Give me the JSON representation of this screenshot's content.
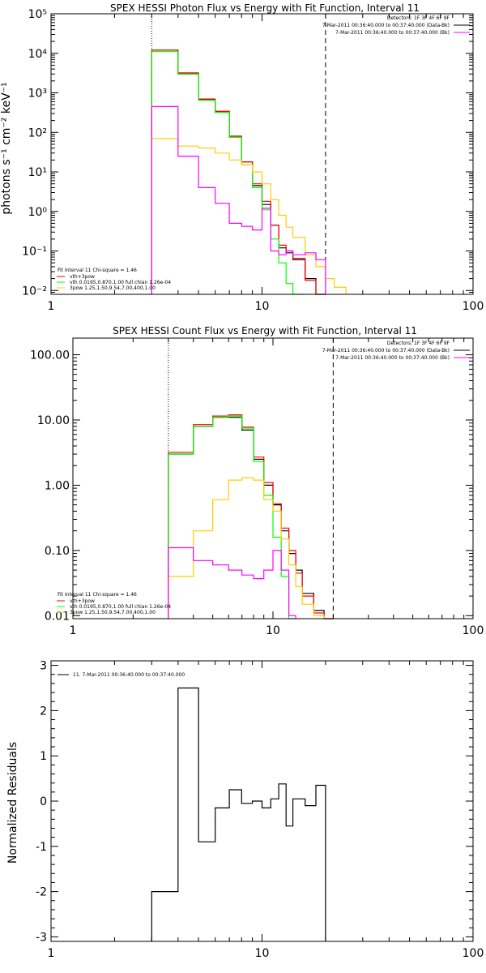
{
  "chart_data": [
    {
      "type": "line",
      "title": "SPEX HESSI Photon Flux vs Energy with Fit Function, Interval 11",
      "ylabel": "photons s⁻¹ cm⁻² keV⁻¹",
      "x_scale": "log",
      "y_scale": "log",
      "xlim": [
        1,
        100
      ],
      "ylim": [
        0.008,
        100000
      ],
      "x_ticks": [
        1,
        10,
        100
      ],
      "x_tick_labels": [
        "1",
        "10",
        "100"
      ],
      "y_ticks": [
        0.01,
        0.1,
        1,
        10,
        100,
        1000,
        10000,
        100000
      ],
      "y_tick_labels": [
        "10⁻²",
        "10⁻¹",
        "10⁰",
        "10¹",
        "10²",
        "10³",
        "10⁴",
        "10⁵"
      ],
      "vlines": [
        {
          "x": 3,
          "style": "dotted"
        },
        {
          "x": 20,
          "style": "dashed"
        }
      ],
      "info_lines": [
        "Detectors: 1F 3F 4F 6F 9F",
        "7-Mar-2011 00:36:40.000 to 00:37:40.000 (Data-Bk)",
        "7-Mar-2011 00:36:40.000 to 00:37:40.000 (Bk)"
      ],
      "info_colors": [
        "#000000",
        "#000000",
        "#ff00ff"
      ],
      "legend": [
        {
          "text": "Fit Interval 11    Chi-square = 1.46",
          "color": null
        },
        {
          "text": "vth+3pow",
          "color": "#ff0000"
        },
        {
          "text": "vth 0.0195,0.870,1.00  full chian 1.26e-04",
          "color": "#00ff00"
        },
        {
          "text": "3pow 1.25,1.50,9.54,7.00,400,1.00",
          "color": "#ffcc00"
        }
      ],
      "bin_edges": [
        3,
        4,
        5,
        6,
        7,
        8,
        9,
        10,
        11,
        12,
        13,
        14,
        16,
        18,
        20,
        22,
        25
      ],
      "series": [
        {
          "color": "#000000",
          "values": [
            12000,
            3000,
            680,
            340,
            80,
            18,
            4.5,
            1.5,
            0.45,
            0.12,
            0.09,
            0.06,
            0.02,
            0.008,
            null,
            null
          ]
        },
        {
          "color": "#ff0000",
          "values": [
            12000,
            3200,
            700,
            340,
            80,
            18,
            5,
            1.8,
            0.45,
            0.14,
            0.1,
            0.065,
            0.018,
            0.008,
            null,
            null
          ]
        },
        {
          "color": "#00ff00",
          "values": [
            11000,
            3000,
            650,
            320,
            75,
            15,
            4,
            1.1,
            0.2,
            0.05,
            0.015,
            0.008,
            null,
            null,
            null,
            null
          ]
        },
        {
          "color": "#ffcc00",
          "values": [
            70,
            45,
            40,
            30,
            20,
            15,
            10,
            5,
            2,
            0.8,
            0.4,
            0.22,
            0.08,
            0.04,
            0.02,
            0.012
          ]
        },
        {
          "color": "#ff00ff",
          "values": [
            450,
            25,
            4,
            1.6,
            0.5,
            0.42,
            0.34,
            1.2,
            0.1,
            0.08,
            0.1,
            0.08,
            0.09,
            0.06,
            null,
            null
          ]
        }
      ]
    },
    {
      "type": "line",
      "title": "SPEX HESSI Count Flux vs Energy with Fit Function, Interval 11",
      "x_scale": "log",
      "y_scale": "log",
      "xlim": [
        1,
        100
      ],
      "ylim": [
        0.009,
        180
      ],
      "x_ticks": [
        1,
        10,
        100
      ],
      "x_tick_labels": [
        "1",
        "10",
        "100"
      ],
      "y_ticks": [
        0.01,
        0.1,
        1,
        10,
        100
      ],
      "y_tick_labels": [
        "0.01",
        "0.10",
        "1.00",
        "10.00",
        "100.00"
      ],
      "vlines": [
        {
          "x": 3,
          "style": "dotted"
        },
        {
          "x": 20,
          "style": "dashed"
        }
      ],
      "info_lines": [
        "Detectors: 1F 3F 4F 6F 9F",
        "7-Mar-2011 00:36:40.000 to 00:37:40.000 (Data-Bk)",
        "7-Mar-2011 00:36:40.000 to 00:37:40.000 (Bk)"
      ],
      "info_colors": [
        "#000000",
        "#000000",
        "#ff00ff"
      ],
      "legend": [
        {
          "text": "Fit Interval 11    Chi-square = 1.46",
          "color": null
        },
        {
          "text": "vth+3pow",
          "color": "#ff0000"
        },
        {
          "text": "vth 0.0195,0.870,1.00  full chian 1.26e-04",
          "color": "#00ff00"
        },
        {
          "text": "3pow 1.25,1.50,9.54,7.00,400,1.00",
          "color": "#ffcc00"
        }
      ],
      "bin_edges": [
        3,
        4,
        5,
        6,
        7,
        8,
        9,
        10,
        11,
        12,
        13,
        14,
        16,
        18,
        20
      ],
      "series": [
        {
          "color": "#000000",
          "values": [
            3.0,
            8.0,
            11.0,
            11.0,
            7.0,
            2.5,
            1.0,
            0.5,
            0.2,
            0.09,
            0.05,
            0.022,
            0.012,
            0.009
          ]
        },
        {
          "color": "#ff0000",
          "values": [
            3.2,
            8.5,
            11.5,
            12.0,
            7.8,
            2.7,
            1.1,
            0.52,
            0.22,
            0.1,
            0.045,
            0.02,
            0.011,
            0.009
          ]
        },
        {
          "color": "#00ff00",
          "values": [
            3.0,
            8.0,
            11.0,
            11.5,
            7.5,
            2.3,
            0.7,
            0.16,
            0.04,
            0.009,
            null,
            null,
            null,
            null
          ]
        },
        {
          "color": "#ffcc00",
          "values": [
            0.04,
            0.2,
            0.6,
            1.2,
            1.3,
            1.2,
            0.6,
            0.4,
            0.15,
            0.06,
            0.028,
            0.015,
            0.01,
            null
          ]
        },
        {
          "color": "#ff00ff",
          "values": [
            0.11,
            0.07,
            0.06,
            0.05,
            0.042,
            0.037,
            0.05,
            0.1,
            0.05,
            0.01,
            null,
            null,
            null,
            null
          ]
        }
      ]
    },
    {
      "type": "line",
      "ylabel": "Normalized Residuals",
      "x_scale": "log",
      "y_scale": "linear",
      "xlim": [
        1,
        100
      ],
      "ylim": [
        -3.1,
        3.1
      ],
      "x_ticks": [
        1,
        10,
        100
      ],
      "x_tick_labels": [
        "1",
        "10",
        "100"
      ],
      "y_ticks": [
        -3,
        -2,
        -1,
        0,
        1,
        2,
        3
      ],
      "y_tick_labels": [
        "-3",
        "-2",
        "-1",
        "0",
        "1",
        "2",
        "3"
      ],
      "legend": [
        {
          "text": "11.  7-Mar-2011 00:36:40.000 to 00:37:40.000",
          "color": "#000000"
        }
      ],
      "bin_edges": [
        3,
        4,
        5,
        6,
        7,
        8,
        9,
        10,
        11,
        12,
        13,
        14,
        16,
        18,
        20
      ],
      "series": [
        {
          "color": "#000000",
          "values": [
            -2.0,
            2.5,
            -0.9,
            -0.15,
            0.25,
            -0.05,
            0.0,
            -0.15,
            0.05,
            0.38,
            -0.55,
            0.05,
            -0.1,
            0.35
          ]
        }
      ]
    }
  ]
}
